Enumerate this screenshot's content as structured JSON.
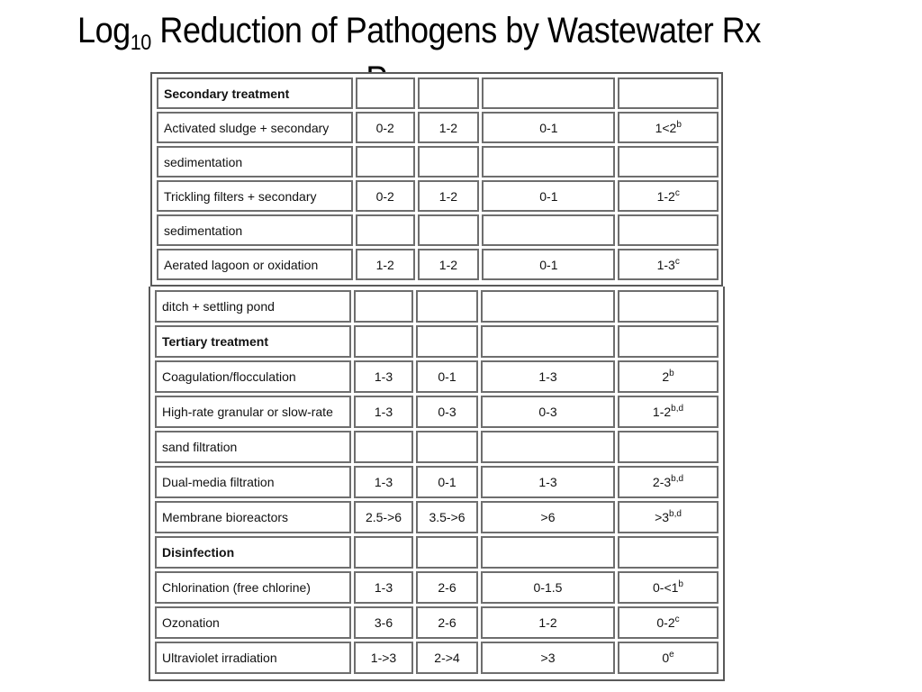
{
  "title": {
    "prefix": "Log",
    "subscript": "10",
    "rest": " Reduction of Pathogens by Wastewater Rx",
    "overflow": "P"
  },
  "table_top": [
    {
      "label": "Secondary treatment",
      "section": true,
      "cells": [
        {
          "v": "",
          "s": ""
        },
        {
          "v": "",
          "s": ""
        },
        {
          "v": "",
          "s": ""
        },
        {
          "v": "",
          "s": ""
        }
      ]
    },
    {
      "label": "Activated sludge + secondary",
      "section": false,
      "cells": [
        {
          "v": "0-2",
          "s": ""
        },
        {
          "v": "1-2",
          "s": ""
        },
        {
          "v": "0-1",
          "s": ""
        },
        {
          "v": "1<2",
          "s": "b"
        }
      ]
    },
    {
      "label": "sedimentation",
      "section": false,
      "cells": [
        {
          "v": "",
          "s": ""
        },
        {
          "v": "",
          "s": ""
        },
        {
          "v": "",
          "s": ""
        },
        {
          "v": "",
          "s": ""
        }
      ]
    },
    {
      "label": "Trickling filters + secondary",
      "section": false,
      "cells": [
        {
          "v": "0-2",
          "s": ""
        },
        {
          "v": "1-2",
          "s": ""
        },
        {
          "v": "0-1",
          "s": ""
        },
        {
          "v": "1-2",
          "s": "c"
        }
      ]
    },
    {
      "label": "sedimentation",
      "section": false,
      "cells": [
        {
          "v": "",
          "s": ""
        },
        {
          "v": "",
          "s": ""
        },
        {
          "v": "",
          "s": ""
        },
        {
          "v": "",
          "s": ""
        }
      ]
    },
    {
      "label": "Aerated lagoon or oxidation",
      "section": false,
      "cells": [
        {
          "v": "1-2",
          "s": ""
        },
        {
          "v": "1-2",
          "s": ""
        },
        {
          "v": "0-1",
          "s": ""
        },
        {
          "v": "1-3",
          "s": "c"
        }
      ]
    }
  ],
  "table_bottom": [
    {
      "label": "ditch + settling pond",
      "section": false,
      "cells": [
        {
          "v": "",
          "s": ""
        },
        {
          "v": "",
          "s": ""
        },
        {
          "v": "",
          "s": ""
        },
        {
          "v": "",
          "s": ""
        }
      ]
    },
    {
      "label": "Tertiary treatment",
      "section": true,
      "cells": [
        {
          "v": "",
          "s": ""
        },
        {
          "v": "",
          "s": ""
        },
        {
          "v": "",
          "s": ""
        },
        {
          "v": "",
          "s": ""
        }
      ]
    },
    {
      "label": "Coagulation/flocculation",
      "section": false,
      "cells": [
        {
          "v": "1-3",
          "s": ""
        },
        {
          "v": "0-1",
          "s": ""
        },
        {
          "v": "1-3",
          "s": ""
        },
        {
          "v": "2",
          "s": "b"
        }
      ]
    },
    {
      "label": "High-rate granular or slow-rate",
      "section": false,
      "cells": [
        {
          "v": "1-3",
          "s": ""
        },
        {
          "v": "0-3",
          "s": ""
        },
        {
          "v": "0-3",
          "s": ""
        },
        {
          "v": "1-2",
          "s": "b,d"
        }
      ]
    },
    {
      "label": "sand filtration",
      "section": false,
      "cells": [
        {
          "v": "",
          "s": ""
        },
        {
          "v": "",
          "s": ""
        },
        {
          "v": "",
          "s": ""
        },
        {
          "v": "",
          "s": ""
        }
      ]
    },
    {
      "label": "Dual-media filtration",
      "section": false,
      "cells": [
        {
          "v": "1-3",
          "s": ""
        },
        {
          "v": "0-1",
          "s": ""
        },
        {
          "v": "1-3",
          "s": ""
        },
        {
          "v": "2-3",
          "s": "b,d"
        }
      ]
    },
    {
      "label": "Membrane bioreactors",
      "section": false,
      "cells": [
        {
          "v": "2.5->6",
          "s": ""
        },
        {
          "v": "3.5->6",
          "s": ""
        },
        {
          "v": ">6",
          "s": ""
        },
        {
          "v": ">3",
          "s": "b,d"
        }
      ]
    },
    {
      "label": "Disinfection",
      "section": true,
      "cells": [
        {
          "v": "",
          "s": ""
        },
        {
          "v": "",
          "s": ""
        },
        {
          "v": "",
          "s": ""
        },
        {
          "v": "",
          "s": ""
        }
      ]
    },
    {
      "label": "Chlorination (free chlorine)",
      "section": false,
      "cells": [
        {
          "v": "1-3",
          "s": ""
        },
        {
          "v": "2-6",
          "s": ""
        },
        {
          "v": "0-1.5",
          "s": ""
        },
        {
          "v": "0-<1",
          "s": "b"
        }
      ]
    },
    {
      "label": "Ozonation",
      "section": false,
      "cells": [
        {
          "v": "3-6",
          "s": ""
        },
        {
          "v": "2-6",
          "s": ""
        },
        {
          "v": "1-2",
          "s": ""
        },
        {
          "v": "0-2",
          "s": "c"
        }
      ]
    },
    {
      "label": "Ultraviolet irradiation",
      "section": false,
      "cells": [
        {
          "v": "1->3",
          "s": ""
        },
        {
          "v": "2->4",
          "s": ""
        },
        {
          "v": ">3",
          "s": ""
        },
        {
          "v": "0",
          "s": "e"
        }
      ]
    }
  ]
}
